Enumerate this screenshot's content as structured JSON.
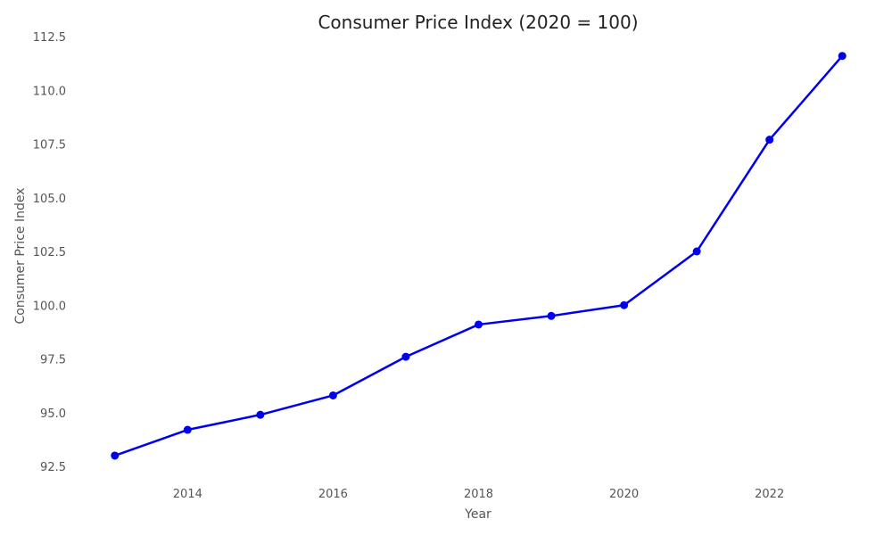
{
  "chart_data": {
    "type": "line",
    "title": "Consumer Price Index (2020 = 100)",
    "xlabel": "Year",
    "ylabel": "Consumer Price Index",
    "x": [
      2013,
      2014,
      2015,
      2016,
      2017,
      2018,
      2019,
      2020,
      2021,
      2022,
      2023
    ],
    "series": [
      {
        "values": [
          93.0,
          94.2,
          94.9,
          95.8,
          97.6,
          99.1,
          99.5,
          100.0,
          102.5,
          107.7,
          111.6
        ]
      }
    ],
    "xticks": [
      "2014",
      "2016",
      "2018",
      "2020",
      "2022"
    ],
    "yticks": [
      "92.5",
      "95.0",
      "97.5",
      "100.0",
      "102.5",
      "105.0",
      "107.5",
      "110.0",
      "112.5"
    ],
    "xlim": [
      2012.5,
      2023.5
    ],
    "ylim": [
      92.5,
      112.5
    ],
    "grid": false,
    "legend": "none",
    "line_color": "#0000ee"
  }
}
